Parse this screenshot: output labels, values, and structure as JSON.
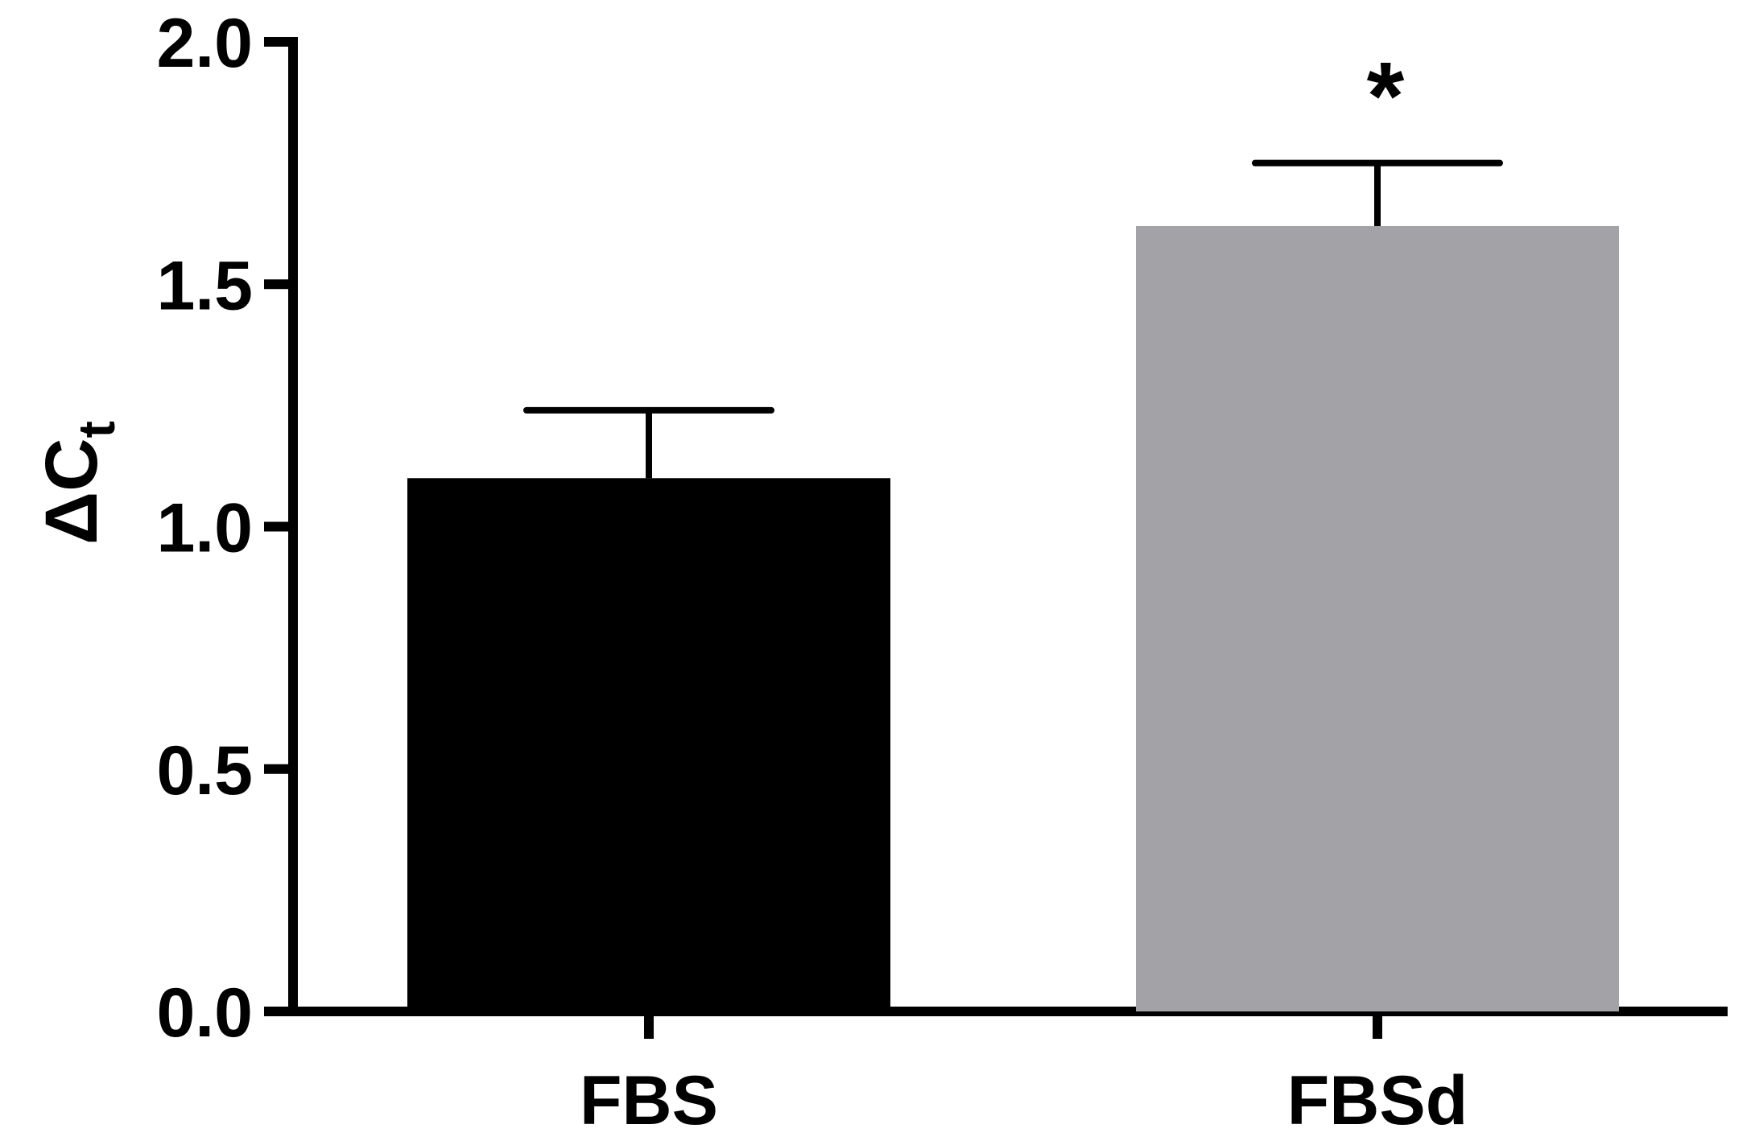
{
  "chart_data": {
    "type": "bar",
    "categories": [
      "FBS",
      "FBSd"
    ],
    "values": [
      1.1,
      1.62
    ],
    "errors": [
      0.14,
      0.13
    ],
    "colors": [
      "#000000",
      "#a3a2a6"
    ],
    "title": "",
    "xlabel": "",
    "ylabel": {
      "main": "ΔC",
      "subscript": "t"
    },
    "ylim": [
      0,
      2.0
    ],
    "yticks": [
      0.0,
      0.5,
      1.0,
      1.5,
      2.0
    ],
    "ytick_labels": [
      "0.0",
      "0.5",
      "1.0",
      "1.5",
      "2.0"
    ],
    "annotations": [
      {
        "category": "FBSd",
        "text": "*"
      }
    ],
    "grid": false,
    "legend": "none"
  }
}
